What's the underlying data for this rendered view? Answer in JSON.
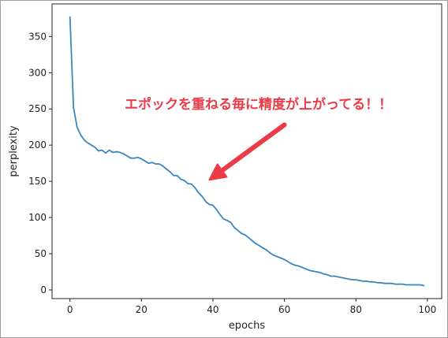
{
  "chart_data": {
    "type": "line",
    "title": "",
    "xlabel": "epochs",
    "ylabel": "perplexity",
    "xlim": [
      -5,
      104
    ],
    "ylim": [
      -12,
      395
    ],
    "xticks": [
      0,
      20,
      40,
      60,
      80,
      100
    ],
    "yticks": [
      0,
      50,
      100,
      150,
      200,
      250,
      300,
      350
    ],
    "grid": false,
    "line_color": "#3a86bd",
    "series": [
      {
        "x": [
          0,
          1,
          2,
          3,
          4,
          5,
          6,
          7,
          8,
          9,
          10,
          11,
          12,
          13,
          14,
          15,
          16,
          17,
          18,
          19,
          20,
          21,
          22,
          23,
          24,
          25,
          26,
          27,
          28,
          29,
          30,
          31,
          32,
          33,
          34,
          35,
          36,
          37,
          38,
          39,
          40,
          41,
          42,
          43,
          44,
          45,
          46,
          47,
          48,
          49,
          50,
          51,
          52,
          53,
          54,
          55,
          56,
          57,
          58,
          59,
          60,
          61,
          62,
          63,
          64,
          65,
          66,
          67,
          68,
          69,
          70,
          71,
          72,
          73,
          74,
          75,
          76,
          77,
          78,
          79,
          80,
          81,
          82,
          83,
          84,
          85,
          86,
          87,
          88,
          89,
          90,
          91,
          92,
          93,
          94,
          95,
          96,
          97,
          98,
          99
        ],
        "values": [
          377,
          252,
          225,
          214,
          207,
          203,
          200,
          197,
          192,
          193,
          189,
          193,
          190,
          191,
          190,
          188,
          185,
          182,
          182,
          183,
          181,
          178,
          175,
          176,
          174,
          174,
          171,
          167,
          163,
          158,
          158,
          153,
          151,
          147,
          146,
          141,
          134,
          129,
          122,
          118,
          117,
          111,
          104,
          98,
          96,
          93,
          86,
          82,
          78,
          76,
          72,
          68,
          64,
          61,
          58,
          55,
          51,
          48,
          46,
          44,
          42,
          39,
          36,
          34,
          33,
          31,
          29,
          27,
          26,
          25,
          24,
          22,
          21,
          19,
          19,
          18,
          17,
          16,
          15,
          14,
          14,
          13,
          12,
          12,
          11,
          11,
          10,
          10,
          9,
          9,
          9,
          8,
          8,
          8,
          7,
          7,
          7,
          7,
          7,
          6
        ]
      }
    ],
    "annotation": {
      "text": "エポックを重ねる毎に精度が上がってる！！",
      "color": "#ea3b47",
      "arrow_from": [
        60,
        228
      ],
      "arrow_to": [
        39,
        152
      ]
    }
  }
}
